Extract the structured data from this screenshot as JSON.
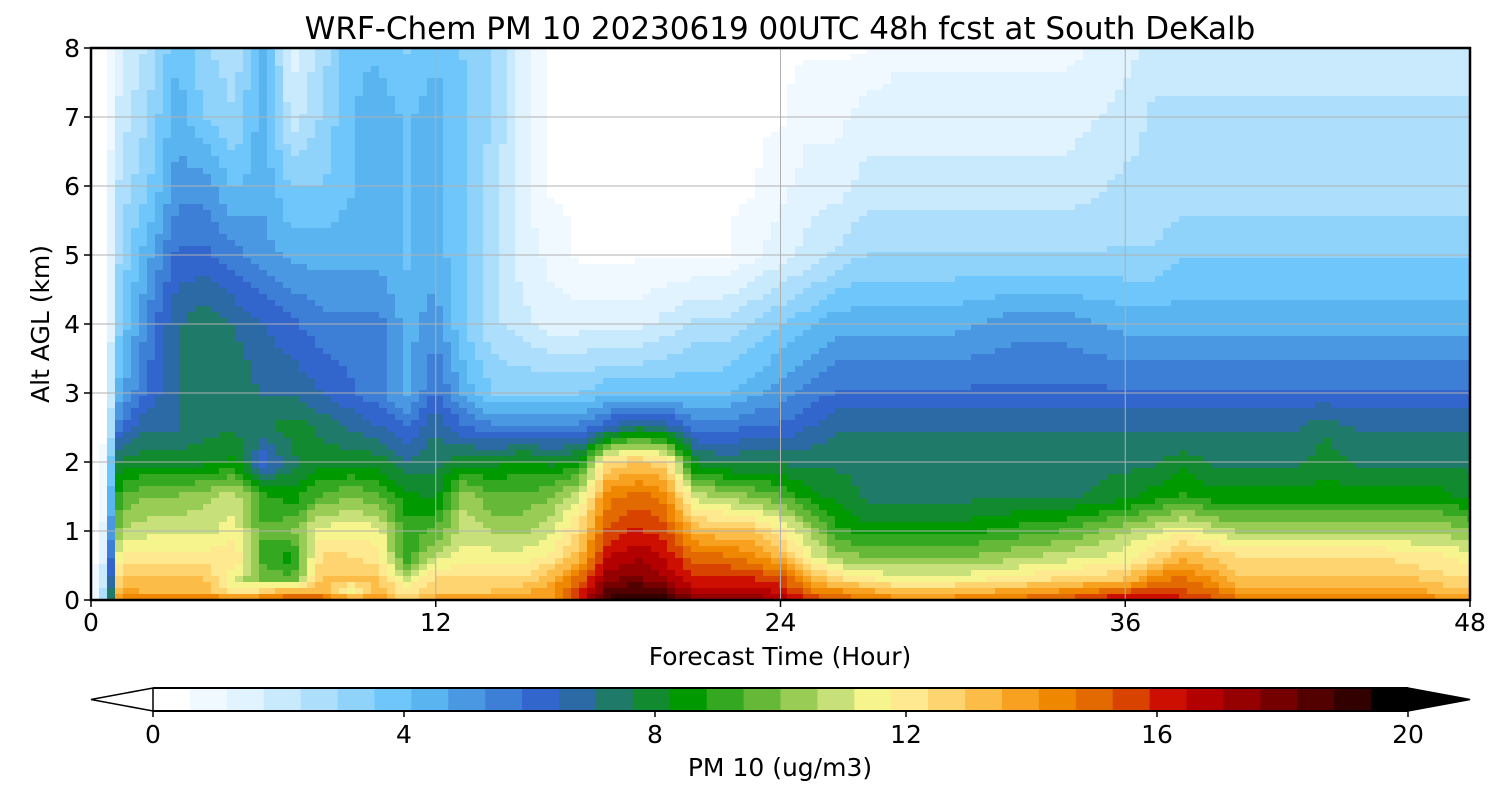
{
  "chart_data": {
    "type": "heatmap",
    "title": "WRF-Chem PM 10  20230619 00UTC 48h fcst at South DeKalb",
    "xlabel": "Forecast Time (Hour)",
    "ylabel": "Alt AGL (km)",
    "xlim": [
      0,
      48
    ],
    "ylim": [
      0,
      8
    ],
    "xticks": [
      0,
      12,
      24,
      36,
      48
    ],
    "yticks": [
      0,
      1,
      2,
      3,
      4,
      5,
      6,
      7,
      8
    ],
    "grid": true,
    "colorbar": {
      "label": "PM 10  (ug/m3)",
      "range": [
        0,
        20
      ],
      "ticks": [
        0,
        4,
        8,
        12,
        16,
        20
      ],
      "extend": "both",
      "placement": "bottom"
    },
    "x": [
      0,
      0.5,
      1,
      2,
      3,
      4,
      5,
      6,
      7,
      8,
      9,
      10,
      11,
      12,
      13,
      14,
      15,
      16,
      17,
      18,
      19,
      20,
      21,
      22,
      23,
      24,
      25,
      26,
      27,
      28,
      30,
      32,
      34,
      36,
      37,
      38,
      39,
      40,
      41,
      42,
      43,
      44,
      45,
      46,
      47,
      48
    ],
    "y": [
      0,
      0.1,
      0.3,
      0.6,
      1,
      1.5,
      2,
      2.5,
      3,
      4,
      5,
      6,
      7,
      8
    ],
    "z": [
      [
        0,
        3,
        15,
        15,
        15,
        15,
        15,
        15,
        16,
        16,
        15,
        14,
        13,
        14,
        14,
        14,
        14,
        14,
        16,
        19,
        19.5,
        19,
        18,
        18,
        17.5,
        17,
        16,
        15,
        15,
        14.5,
        14.5,
        15,
        15.5,
        17,
        16.5,
        16,
        15.5,
        15,
        15,
        15,
        15,
        15,
        15,
        15,
        14.5,
        14.5
      ],
      [
        0,
        3,
        14,
        13.5,
        13.5,
        13.5,
        12,
        13,
        14,
        13.5,
        11,
        13.5,
        12,
        13,
        13,
        13,
        13.5,
        14,
        16,
        18.5,
        19,
        18.5,
        17,
        17,
        17,
        16.5,
        15,
        14.5,
        14,
        13.5,
        13.5,
        14,
        14.5,
        15.5,
        16,
        15.5,
        15,
        14,
        14,
        14,
        14,
        14,
        14,
        14,
        13.5,
        13.5
      ],
      [
        0,
        2.5,
        13,
        13,
        13,
        13,
        11,
        10,
        9.5,
        13,
        13,
        13,
        11,
        12.5,
        12.5,
        12.5,
        12.5,
        13.5,
        15,
        17.5,
        18,
        17,
        16,
        16,
        16,
        15.5,
        13.5,
        12.5,
        12,
        11.5,
        11.5,
        12,
        12.5,
        13,
        14.5,
        15,
        14,
        13,
        13,
        13,
        13,
        13,
        13,
        13,
        12.5,
        12.5
      ],
      [
        0,
        2,
        12,
        12,
        12,
        12,
        12.5,
        9,
        8.5,
        12.5,
        12.5,
        12,
        9,
        11,
        11.5,
        11.5,
        11.5,
        12,
        13.5,
        16.5,
        17,
        16.5,
        15,
        15,
        14.5,
        13.5,
        11.5,
        10.5,
        10,
        10,
        10,
        10.5,
        11,
        11.5,
        12.5,
        13.5,
        13,
        12.5,
        12.5,
        12.5,
        12.5,
        12.5,
        12.5,
        12,
        12,
        11.5
      ],
      [
        0,
        1.5,
        10.5,
        11,
        11,
        11,
        11.5,
        9.5,
        10,
        11.5,
        11.5,
        11.5,
        9,
        9.5,
        11,
        10.5,
        10.5,
        11,
        12.5,
        15.5,
        16,
        15.5,
        13.5,
        13,
        13,
        12,
        10.5,
        9,
        8.5,
        8.5,
        8.5,
        9,
        9.5,
        10.5,
        11,
        11.5,
        11,
        10.5,
        10.5,
        10.5,
        10.5,
        10.5,
        10.5,
        10.5,
        10.5,
        10
      ],
      [
        0,
        1,
        9.5,
        10,
        10,
        10.5,
        11,
        9,
        8.5,
        9.5,
        10,
        9.5,
        8.5,
        8,
        10.5,
        9.5,
        9.5,
        10,
        11,
        14.5,
        15,
        14.5,
        11,
        10.5,
        10,
        9.5,
        8.5,
        8,
        7.5,
        7.5,
        7.5,
        7.5,
        7.5,
        8,
        8.5,
        9,
        8.5,
        8.5,
        8.5,
        8.5,
        8.5,
        8.5,
        8.5,
        8.5,
        8.5,
        8
      ],
      [
        0,
        1,
        8,
        8,
        8,
        8,
        8.5,
        6,
        7.5,
        8,
        8,
        8,
        7,
        7.5,
        8,
        8,
        8.5,
        8,
        8.5,
        12.5,
        13,
        12.5,
        8,
        7.5,
        7.5,
        7.5,
        7.5,
        7.5,
        7.5,
        7.5,
        7.5,
        7.5,
        7.5,
        7.5,
        7.5,
        8,
        7.5,
        7.5,
        7.5,
        7.5,
        8,
        7.5,
        7.5,
        7.5,
        7.5,
        7.5
      ],
      [
        0,
        0.5,
        6,
        7,
        7,
        7.5,
        7.5,
        7.5,
        8,
        7.5,
        7,
        6.5,
        6,
        7,
        6,
        5.5,
        5.5,
        5.5,
        5.5,
        6.5,
        7.5,
        7,
        5.5,
        5.5,
        6,
        6,
        6.5,
        7,
        7,
        7,
        7,
        7,
        7,
        7,
        7,
        7,
        7,
        7,
        7,
        7,
        7.5,
        7,
        7,
        7,
        7,
        7
      ],
      [
        0,
        0.5,
        4.5,
        6,
        7,
        7.5,
        7.5,
        7,
        7,
        6.5,
        6,
        5.5,
        4.5,
        6,
        4.5,
        3.5,
        3.5,
        3.5,
        3.5,
        4,
        4,
        4,
        4,
        4,
        4.5,
        5,
        5.5,
        6,
        6,
        6,
        6,
        6,
        6,
        6,
        6,
        6,
        6,
        6,
        6,
        6,
        6,
        6,
        6,
        6,
        6,
        6
      ],
      [
        0,
        0.5,
        3.5,
        5.5,
        7,
        7.5,
        7,
        6.5,
        6,
        5.5,
        5.5,
        5.5,
        4.5,
        5,
        3.5,
        2.5,
        2,
        1.5,
        1.5,
        1.5,
        1.5,
        2,
        2.5,
        2.5,
        3,
        3.5,
        4,
        4.5,
        4.5,
        4.5,
        4.5,
        5,
        5,
        4.5,
        4.5,
        4.5,
        4.5,
        4.5,
        4.5,
        4.5,
        4.5,
        4.5,
        4.5,
        4.5,
        4.5,
        4.5
      ],
      [
        0,
        0.5,
        3,
        4.5,
        6,
        6,
        5.5,
        5,
        4.5,
        4.5,
        4.5,
        4.5,
        4,
        4.5,
        3.5,
        2.5,
        1.5,
        1,
        0.5,
        0.5,
        0.5,
        0.5,
        0.5,
        0.5,
        1,
        1.5,
        2,
        2.5,
        3,
        3,
        3,
        3,
        3,
        3,
        3,
        3.5,
        3.5,
        3.5,
        3.5,
        3.5,
        3.5,
        3.5,
        3.5,
        3.5,
        3.5,
        3.5
      ],
      [
        0,
        0.5,
        2.5,
        3.5,
        5,
        5,
        4,
        4.5,
        3.5,
        3.5,
        4,
        4.5,
        4,
        4.5,
        3.5,
        2.5,
        1.5,
        0.5,
        0.5,
        0.5,
        0.5,
        0.5,
        0.5,
        0.5,
        0.5,
        1,
        1.5,
        1.5,
        2,
        2,
        2,
        2,
        2,
        2.5,
        2.5,
        2.5,
        2.5,
        2.5,
        2.5,
        2.5,
        2.5,
        2.5,
        2.5,
        2.5,
        2.5,
        2.5
      ],
      [
        0,
        0.5,
        2,
        3,
        4.5,
        3.5,
        3,
        4.5,
        2,
        3,
        4,
        4.5,
        4,
        4.5,
        3.5,
        3,
        1.5,
        0.5,
        0.5,
        0.5,
        0.5,
        0.5,
        0.5,
        0.5,
        0.5,
        0.5,
        1,
        1,
        1.5,
        1.5,
        1.5,
        1.5,
        1.5,
        2,
        2.5,
        2.5,
        2.5,
        2.5,
        2.5,
        2.5,
        2.5,
        2.5,
        2.5,
        2.5,
        2.5,
        2.5
      ],
      [
        0,
        0.5,
        1.5,
        2.5,
        4,
        3,
        2.5,
        4.5,
        1.5,
        2.5,
        4,
        4,
        3.5,
        4,
        3.5,
        3,
        1.5,
        0.5,
        0.5,
        0.5,
        0.5,
        0.5,
        0.5,
        0.5,
        0.5,
        0.5,
        0.5,
        0.5,
        0.5,
        1,
        1,
        1,
        1,
        1.5,
        2,
        2,
        2,
        2,
        2,
        2,
        2,
        2,
        2,
        2,
        2,
        2
      ]
    ],
    "palette": [
      "#ffffff",
      "#f0f9ff",
      "#e0f3fe",
      "#c9eafd",
      "#addffc",
      "#8fd3fb",
      "#6ec6fa",
      "#5ab4f0",
      "#4a98e2",
      "#3d7fd6",
      "#3366cc",
      "#2b6aa5",
      "#1f7a6a",
      "#128a2f",
      "#009a00",
      "#33a820",
      "#66b938",
      "#99cc55",
      "#c8e07a",
      "#f6f48c",
      "#fee890",
      "#fdd470",
      "#fbbc48",
      "#f8a020",
      "#f08700",
      "#e36a00",
      "#d84400",
      "#cc0f00",
      "#b30000",
      "#950000",
      "#740000",
      "#520000",
      "#330000",
      "#000000"
    ]
  }
}
